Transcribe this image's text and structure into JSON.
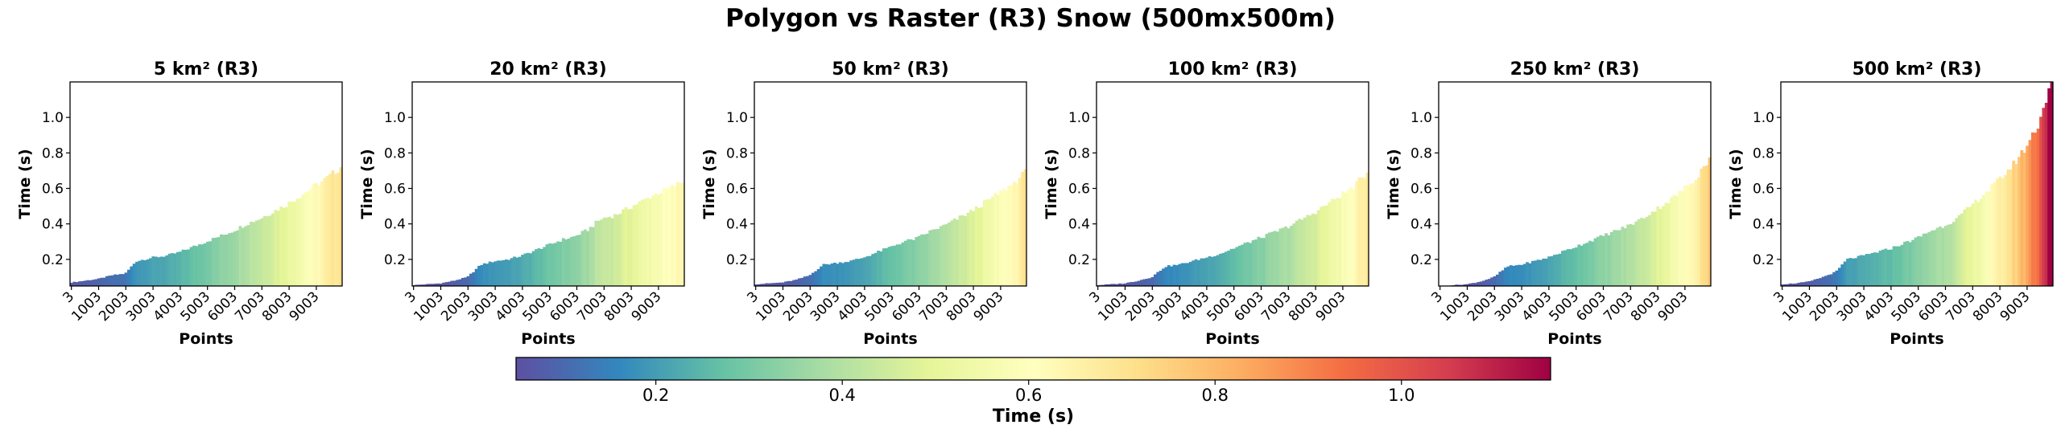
{
  "figure": {
    "title": "Polygon vs Raster (R3) Snow (500mx500m)",
    "colormap": [
      "#5e4fa2",
      "#3288bd",
      "#66c2a5",
      "#abdda4",
      "#e6f598",
      "#ffffbf",
      "#fee08b",
      "#fdae61",
      "#f46d43",
      "#d53e4f",
      "#9e0142"
    ]
  },
  "chart_data": [
    {
      "type": "bar",
      "title": "5 km² (R3)",
      "xlabel": "Points",
      "ylabel": "Time (s)",
      "ylim": [
        0.05,
        1.2
      ],
      "yticks": [
        "0.2",
        "0.4",
        "0.6",
        "0.8",
        "1.0"
      ],
      "xticks": [
        "3",
        "1003",
        "2003",
        "3003",
        "4003",
        "5003",
        "6003",
        "7003",
        "8003",
        "9003"
      ],
      "x_first": 3,
      "x_step": 100,
      "x_count": 100,
      "segments": [
        [
          0,
          0.07
        ],
        [
          0.05,
          0.08
        ],
        [
          0.1,
          0.09
        ],
        [
          0.15,
          0.11
        ],
        [
          0.2,
          0.12
        ],
        [
          0.24,
          0.19
        ],
        [
          0.3,
          0.21
        ],
        [
          0.35,
          0.22
        ],
        [
          0.4,
          0.24
        ],
        [
          0.45,
          0.27
        ],
        [
          0.5,
          0.3
        ],
        [
          0.55,
          0.33
        ],
        [
          0.6,
          0.36
        ],
        [
          0.65,
          0.4
        ],
        [
          0.7,
          0.43
        ],
        [
          0.75,
          0.47
        ],
        [
          0.8,
          0.51
        ],
        [
          0.85,
          0.56
        ],
        [
          0.9,
          0.61
        ],
        [
          0.95,
          0.66
        ],
        [
          1,
          0.72
        ]
      ]
    },
    {
      "type": "bar",
      "title": "20 km² (R3)",
      "xlabel": "Points",
      "ylabel": "Time (s)",
      "ylim": [
        0.05,
        1.2
      ],
      "yticks": [
        "0.2",
        "0.4",
        "0.6",
        "0.8",
        "1.0"
      ],
      "xticks": [
        "3",
        "1003",
        "2003",
        "3003",
        "4003",
        "5003",
        "6003",
        "7003",
        "8003",
        "9003"
      ],
      "x_first": 3,
      "x_step": 100,
      "x_count": 100,
      "segments": [
        [
          0,
          0.055
        ],
        [
          0.05,
          0.06
        ],
        [
          0.1,
          0.065
        ],
        [
          0.15,
          0.08
        ],
        [
          0.2,
          0.1
        ],
        [
          0.25,
          0.17
        ],
        [
          0.3,
          0.19
        ],
        [
          0.35,
          0.2
        ],
        [
          0.4,
          0.22
        ],
        [
          0.45,
          0.25
        ],
        [
          0.5,
          0.28
        ],
        [
          0.55,
          0.31
        ],
        [
          0.6,
          0.33
        ],
        [
          0.65,
          0.37
        ],
        [
          0.68,
          0.41
        ],
        [
          0.7,
          0.43
        ],
        [
          0.75,
          0.45
        ],
        [
          0.8,
          0.49
        ],
        [
          0.85,
          0.53
        ],
        [
          0.9,
          0.57
        ],
        [
          0.95,
          0.6
        ],
        [
          1,
          0.64
        ]
      ]
    },
    {
      "type": "bar",
      "title": "50 km² (R3)",
      "xlabel": "Points",
      "ylabel": "Time (s)",
      "ylim": [
        0.05,
        1.2
      ],
      "yticks": [
        "0.2",
        "0.4",
        "0.6",
        "0.8",
        "1.0"
      ],
      "xticks": [
        "3",
        "1003",
        "2003",
        "3003",
        "4003",
        "5003",
        "6003",
        "7003",
        "8003",
        "9003"
      ],
      "x_first": 3,
      "x_step": 100,
      "x_count": 100,
      "segments": [
        [
          0,
          0.06
        ],
        [
          0.05,
          0.065
        ],
        [
          0.1,
          0.07
        ],
        [
          0.15,
          0.085
        ],
        [
          0.2,
          0.11
        ],
        [
          0.25,
          0.17
        ],
        [
          0.3,
          0.18
        ],
        [
          0.35,
          0.19
        ],
        [
          0.4,
          0.21
        ],
        [
          0.45,
          0.24
        ],
        [
          0.5,
          0.27
        ],
        [
          0.55,
          0.3
        ],
        [
          0.6,
          0.32
        ],
        [
          0.65,
          0.36
        ],
        [
          0.7,
          0.39
        ],
        [
          0.75,
          0.43
        ],
        [
          0.8,
          0.47
        ],
        [
          0.85,
          0.52
        ],
        [
          0.9,
          0.57
        ],
        [
          0.95,
          0.62
        ],
        [
          1,
          0.69
        ]
      ]
    },
    {
      "type": "bar",
      "title": "100 km² (R3)",
      "xlabel": "Points",
      "ylabel": "Time (s)",
      "ylim": [
        0.05,
        1.2
      ],
      "yticks": [
        "0.2",
        "0.4",
        "0.6",
        "0.8",
        "1.0"
      ],
      "xticks": [
        "3",
        "1003",
        "2003",
        "3003",
        "4003",
        "5003",
        "6003",
        "7003",
        "8003",
        "9003"
      ],
      "x_first": 3,
      "x_step": 100,
      "x_count": 100,
      "segments": [
        [
          0,
          0.055
        ],
        [
          0.05,
          0.06
        ],
        [
          0.1,
          0.065
        ],
        [
          0.15,
          0.08
        ],
        [
          0.2,
          0.1
        ],
        [
          0.25,
          0.16
        ],
        [
          0.3,
          0.17
        ],
        [
          0.35,
          0.19
        ],
        [
          0.4,
          0.21
        ],
        [
          0.45,
          0.23
        ],
        [
          0.5,
          0.26
        ],
        [
          0.55,
          0.29
        ],
        [
          0.6,
          0.32
        ],
        [
          0.65,
          0.35
        ],
        [
          0.7,
          0.38
        ],
        [
          0.75,
          0.42
        ],
        [
          0.8,
          0.46
        ],
        [
          0.85,
          0.51
        ],
        [
          0.9,
          0.56
        ],
        [
          0.95,
          0.61
        ],
        [
          1,
          0.69
        ]
      ]
    },
    {
      "type": "bar",
      "title": "250 km² (R3)",
      "xlabel": "Points",
      "ylabel": "Time (s)",
      "ylim": [
        0.05,
        1.2
      ],
      "yticks": [
        "0.2",
        "0.4",
        "0.6",
        "0.8",
        "1.0"
      ],
      "xticks": [
        "3",
        "1003",
        "2003",
        "3003",
        "4003",
        "5003",
        "6003",
        "7003",
        "8003",
        "9003"
      ],
      "x_first": 3,
      "x_step": 100,
      "x_count": 100,
      "segments": [
        [
          0,
          0.05
        ],
        [
          0.05,
          0.055
        ],
        [
          0.1,
          0.06
        ],
        [
          0.15,
          0.075
        ],
        [
          0.2,
          0.1
        ],
        [
          0.25,
          0.16
        ],
        [
          0.3,
          0.17
        ],
        [
          0.35,
          0.19
        ],
        [
          0.4,
          0.21
        ],
        [
          0.45,
          0.24
        ],
        [
          0.5,
          0.27
        ],
        [
          0.55,
          0.3
        ],
        [
          0.6,
          0.33
        ],
        [
          0.65,
          0.36
        ],
        [
          0.7,
          0.39
        ],
        [
          0.75,
          0.43
        ],
        [
          0.8,
          0.48
        ],
        [
          0.85,
          0.53
        ],
        [
          0.9,
          0.59
        ],
        [
          0.95,
          0.66
        ],
        [
          1,
          0.77
        ]
      ]
    },
    {
      "type": "bar",
      "title": "500 km² (R3)",
      "xlabel": "Points",
      "ylabel": "Time (s)",
      "ylim": [
        0.05,
        1.2
      ],
      "yticks": [
        "0.2",
        "0.4",
        "0.6",
        "0.8",
        "1.0"
      ],
      "xticks": [
        "3",
        "1003",
        "2003",
        "3003",
        "4003",
        "5003",
        "6003",
        "7003",
        "8003",
        "9003"
      ],
      "x_first": 3,
      "x_step": 100,
      "x_count": 100,
      "segments": [
        [
          0,
          0.06
        ],
        [
          0.05,
          0.065
        ],
        [
          0.1,
          0.075
        ],
        [
          0.15,
          0.1
        ],
        [
          0.2,
          0.13
        ],
        [
          0.24,
          0.2
        ],
        [
          0.3,
          0.22
        ],
        [
          0.35,
          0.24
        ],
        [
          0.4,
          0.26
        ],
        [
          0.45,
          0.29
        ],
        [
          0.5,
          0.32
        ],
        [
          0.55,
          0.36
        ],
        [
          0.6,
          0.39
        ],
        [
          0.65,
          0.43
        ],
        [
          0.7,
          0.5
        ],
        [
          0.75,
          0.57
        ],
        [
          0.8,
          0.64
        ],
        [
          0.85,
          0.72
        ],
        [
          0.9,
          0.82
        ],
        [
          0.95,
          0.96
        ],
        [
          1,
          1.2
        ]
      ]
    }
  ],
  "colorbar": {
    "label": "Time (s)",
    "vmin": 0.05,
    "vmax": 1.16,
    "ticks": [
      "0.2",
      "0.4",
      "0.6",
      "0.8",
      "1.0"
    ]
  }
}
